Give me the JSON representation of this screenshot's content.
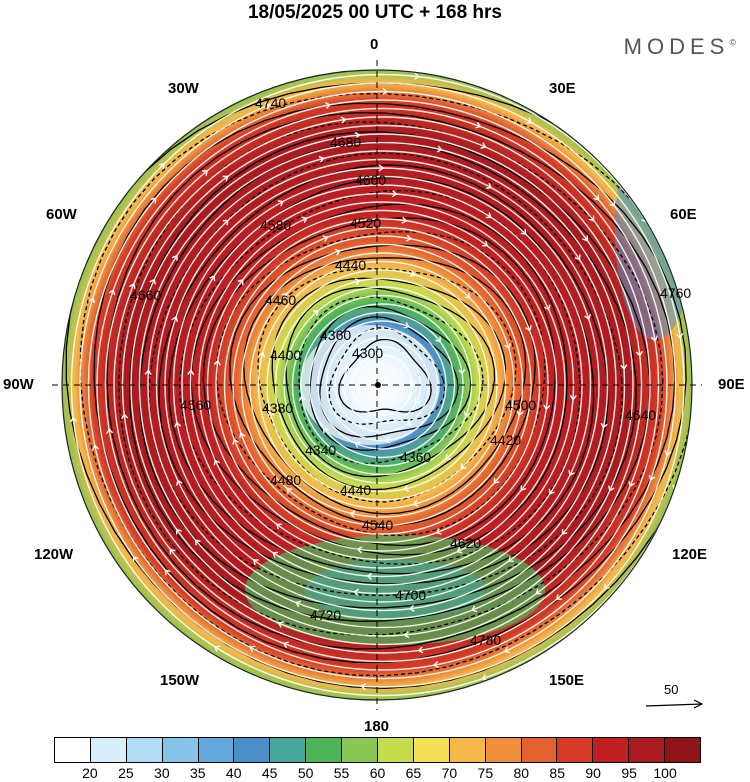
{
  "title": "18/05/2025  00 UTC  + 168 hrs",
  "brand": "MODES",
  "brand_mark": "©",
  "longitude_labels": {
    "top": "0",
    "bottom": "180",
    "left": "90W",
    "right": "90E",
    "tl1": "30W",
    "tl2": "60W",
    "tr1": "30E",
    "tr2": "60E",
    "bl1": "120W",
    "bl2": "150W",
    "br1": "120E",
    "br2": "150E"
  },
  "reference_vector": "50",
  "colorbar": {
    "ticks": [
      "20",
      "25",
      "30",
      "35",
      "40",
      "45",
      "50",
      "55",
      "60",
      "65",
      "70",
      "75",
      "80",
      "85",
      "90",
      "95",
      "100"
    ],
    "colors": [
      "#ffffff",
      "#d8eefb",
      "#b0dcf5",
      "#86c4ea",
      "#62a9dc",
      "#4a8fc8",
      "#45a79a",
      "#4fb458",
      "#8ac653",
      "#c7dc4e",
      "#f6e05a",
      "#f6b849",
      "#ef8f3c",
      "#e5612d",
      "#d53a26",
      "#c02022",
      "#a91b1f",
      "#8f1418"
    ]
  },
  "contour_labels": [
    {
      "text": "4300"
    },
    {
      "text": "4340"
    },
    {
      "text": "4360"
    },
    {
      "text": "4360"
    },
    {
      "text": "4380"
    },
    {
      "text": "4400"
    },
    {
      "text": "4420"
    },
    {
      "text": "4440"
    },
    {
      "text": "4440"
    },
    {
      "text": "4460"
    },
    {
      "text": "4480"
    },
    {
      "text": "4500"
    },
    {
      "text": "4520"
    },
    {
      "text": "4540"
    },
    {
      "text": "4560"
    },
    {
      "text": "4580"
    },
    {
      "text": "4600"
    },
    {
      "text": "4620"
    },
    {
      "text": "4640"
    },
    {
      "text": "4660"
    },
    {
      "text": "4680"
    },
    {
      "text": "4700"
    },
    {
      "text": "4720"
    },
    {
      "text": "4740"
    },
    {
      "text": "4760"
    },
    {
      "text": "4780"
    }
  ]
}
